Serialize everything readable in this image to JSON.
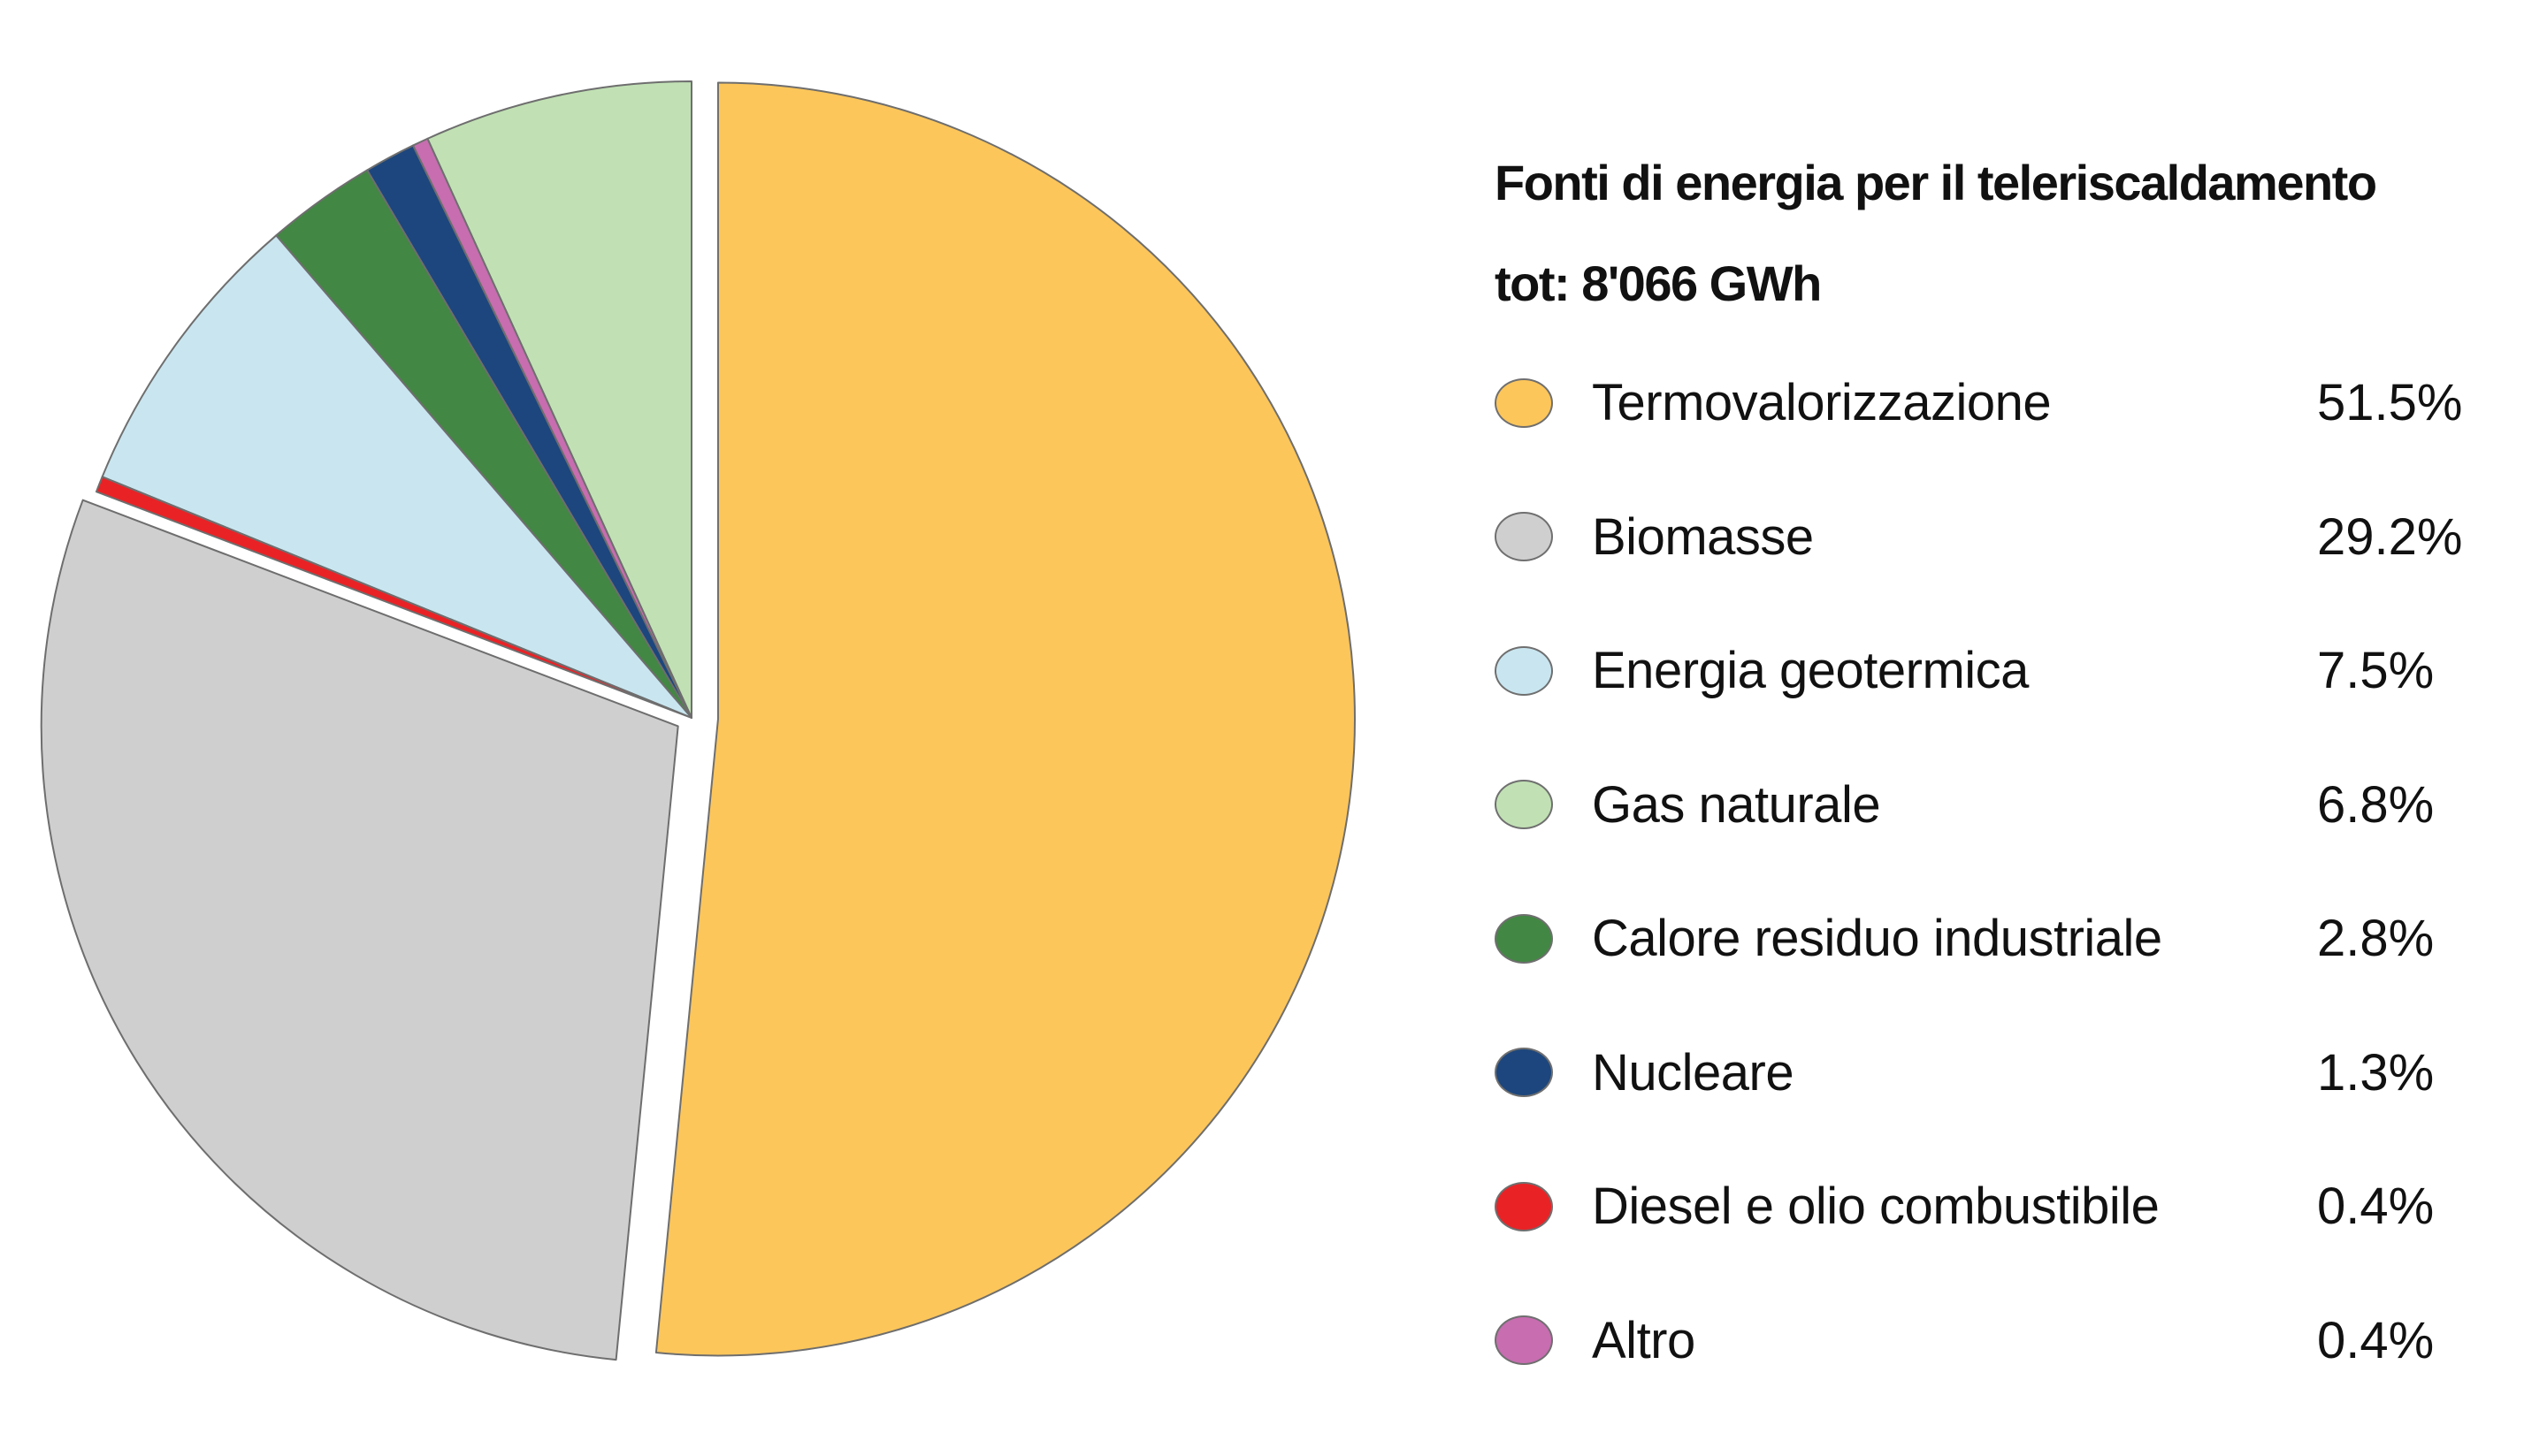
{
  "chart_data": {
    "type": "pie",
    "title": "Fonti di energia per il teleriscaldamento",
    "subtitle": "tot: 8'066 GWh",
    "unit": "%",
    "start_angle_deg": 0,
    "direction": "counterclockwise",
    "exploded": [
      "Termovalorizzazione",
      "Biomasse"
    ],
    "slices": [
      {
        "label": "Termovalorizzazione",
        "value": 51.5,
        "value_label": "51.5%",
        "color": "#fdc65a"
      },
      {
        "label": "Biomasse",
        "value": 29.2,
        "value_label": "29.2%",
        "color": "#d0cfd0"
      },
      {
        "label": "Energia geotermica",
        "value": 7.5,
        "value_label": "7.5%",
        "color": "#c9e6f0"
      },
      {
        "label": "Gas naturale",
        "value": 6.8,
        "value_label": "6.8%",
        "color": "#c1e1b4"
      },
      {
        "label": "Calore residuo industriale",
        "value": 2.8,
        "value_label": "2.8%",
        "color": "#428743"
      },
      {
        "label": "Nucleare",
        "value": 1.3,
        "value_label": "1.3%",
        "color": "#1c467d"
      },
      {
        "label": "Diesel e olio combustibile",
        "value": 0.4,
        "value_label": "0.4%",
        "color": "#e92226"
      },
      {
        "label": "Altro",
        "value": 0.4,
        "value_label": "0.4%",
        "color": "#c76db0"
      }
    ],
    "slice_order": [
      "Gas naturale",
      "Altro",
      "Nucleare",
      "Calore residuo industriale",
      "Energia geotermica",
      "Diesel e olio combustibile",
      "Biomasse",
      "Termovalorizzazione"
    ]
  }
}
